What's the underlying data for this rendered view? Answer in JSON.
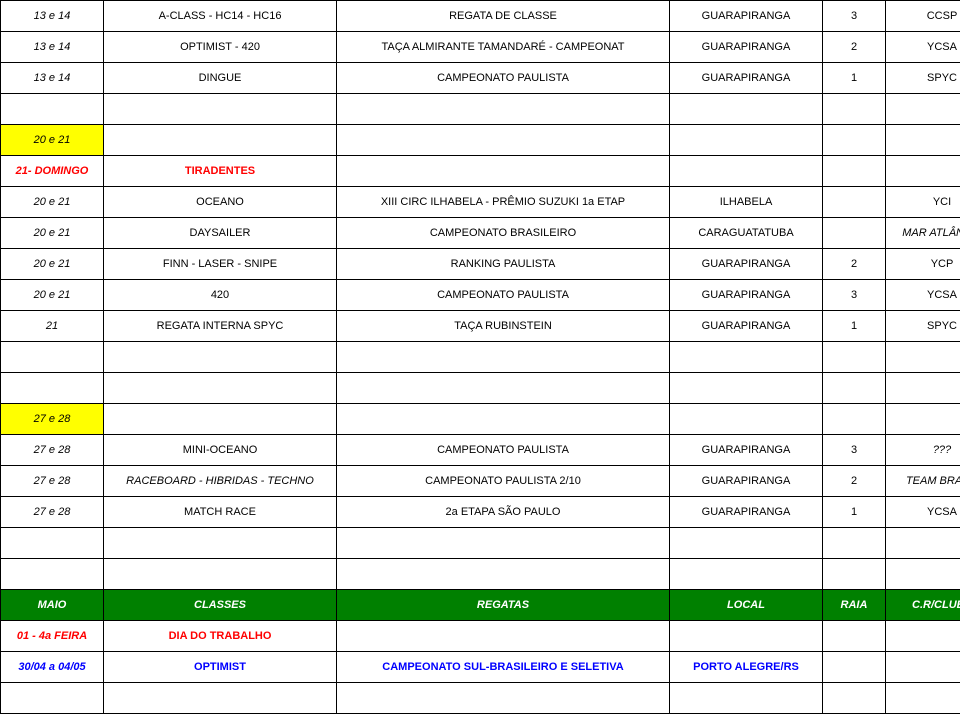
{
  "rows": [
    {
      "cells": [
        {
          "text": "13 e 14",
          "classes": "col-date italic"
        },
        {
          "text": "A-CLASS - HC14 - HC16",
          "classes": "col-class"
        },
        {
          "text": "REGATA DE CLASSE",
          "classes": "col-regata"
        },
        {
          "text": "GUARAPIRANGA",
          "classes": "col-local"
        },
        {
          "text": "3",
          "classes": "col-raia"
        },
        {
          "text": "CCSP",
          "classes": "col-clube"
        }
      ]
    },
    {
      "cells": [
        {
          "text": "13 e 14",
          "classes": "col-date italic"
        },
        {
          "text": "OPTIMIST - 420",
          "classes": "col-class"
        },
        {
          "text": "TAÇA ALMIRANTE TAMANDARÉ - CAMPEONAT",
          "classes": "col-regata"
        },
        {
          "text": "GUARAPIRANGA",
          "classes": "col-local"
        },
        {
          "text": "2",
          "classes": "col-raia"
        },
        {
          "text": "YCSA",
          "classes": "col-clube"
        }
      ]
    },
    {
      "cells": [
        {
          "text": "13 e 14",
          "classes": "col-date italic"
        },
        {
          "text": "DINGUE",
          "classes": "col-class"
        },
        {
          "text": "CAMPEONATO PAULISTA",
          "classes": "col-regata"
        },
        {
          "text": "GUARAPIRANGA",
          "classes": "col-local"
        },
        {
          "text": "1",
          "classes": "col-raia"
        },
        {
          "text": "SPYC",
          "classes": "col-clube"
        }
      ]
    },
    {
      "cells": [
        {
          "text": "",
          "classes": "col-date"
        },
        {
          "text": "",
          "classes": "col-class"
        },
        {
          "text": "",
          "classes": "col-regata"
        },
        {
          "text": "",
          "classes": "col-local"
        },
        {
          "text": "",
          "classes": "col-raia"
        },
        {
          "text": "",
          "classes": "col-clube"
        }
      ]
    },
    {
      "cells": [
        {
          "text": "20 e 21",
          "classes": "col-date italic yellow-bg"
        },
        {
          "text": "",
          "classes": "col-class"
        },
        {
          "text": "",
          "classes": "col-regata"
        },
        {
          "text": "",
          "classes": "col-local"
        },
        {
          "text": "",
          "classes": "col-raia"
        },
        {
          "text": "",
          "classes": "col-clube"
        }
      ]
    },
    {
      "cells": [
        {
          "text": "21- DOMINGO",
          "classes": "col-date italic bold red-text"
        },
        {
          "text": "TIRADENTES",
          "classes": "col-class bold red-text"
        },
        {
          "text": "",
          "classes": "col-regata"
        },
        {
          "text": "",
          "classes": "col-local"
        },
        {
          "text": "",
          "classes": "col-raia"
        },
        {
          "text": "",
          "classes": "col-clube"
        }
      ]
    },
    {
      "cells": [
        {
          "text": "20 e 21",
          "classes": "col-date italic"
        },
        {
          "text": "OCEANO",
          "classes": "col-class"
        },
        {
          "text": "XIII CIRC ILHABELA - PRÊMIO SUZUKI 1a ETAP",
          "classes": "col-regata"
        },
        {
          "text": "ILHABELA",
          "classes": "col-local"
        },
        {
          "text": "",
          "classes": "col-raia"
        },
        {
          "text": "YCI",
          "classes": "col-clube"
        }
      ]
    },
    {
      "cells": [
        {
          "text": "20 e 21",
          "classes": "col-date italic"
        },
        {
          "text": "DAYSAILER",
          "classes": "col-class"
        },
        {
          "text": "CAMPEONATO BRASILEIRO",
          "classes": "col-regata"
        },
        {
          "text": "CARAGUATATUBA",
          "classes": "col-local"
        },
        {
          "text": "",
          "classes": "col-raia"
        },
        {
          "text": "MAR ATLÂNTIC",
          "classes": "col-clube italic"
        }
      ]
    },
    {
      "cells": [
        {
          "text": "20 e 21",
          "classes": "col-date italic"
        },
        {
          "text": "FINN - LASER - SNIPE",
          "classes": "col-class"
        },
        {
          "text": "RANKING PAULISTA",
          "classes": "col-regata"
        },
        {
          "text": "GUARAPIRANGA",
          "classes": "col-local"
        },
        {
          "text": "2",
          "classes": "col-raia"
        },
        {
          "text": "YCP",
          "classes": "col-clube"
        }
      ]
    },
    {
      "cells": [
        {
          "text": "20 e 21",
          "classes": "col-date italic"
        },
        {
          "text": "420",
          "classes": "col-class"
        },
        {
          "text": "CAMPEONATO PAULISTA",
          "classes": "col-regata"
        },
        {
          "text": "GUARAPIRANGA",
          "classes": "col-local"
        },
        {
          "text": "3",
          "classes": "col-raia"
        },
        {
          "text": "YCSA",
          "classes": "col-clube"
        }
      ]
    },
    {
      "cells": [
        {
          "text": "21",
          "classes": "col-date italic"
        },
        {
          "text": "REGATA INTERNA SPYC",
          "classes": "col-class"
        },
        {
          "text": "TAÇA RUBINSTEIN",
          "classes": "col-regata"
        },
        {
          "text": "GUARAPIRANGA",
          "classes": "col-local"
        },
        {
          "text": "1",
          "classes": "col-raia"
        },
        {
          "text": "SPYC",
          "classes": "col-clube"
        }
      ]
    },
    {
      "cells": [
        {
          "text": "",
          "classes": "col-date"
        },
        {
          "text": "",
          "classes": "col-class"
        },
        {
          "text": "",
          "classes": "col-regata"
        },
        {
          "text": "",
          "classes": "col-local"
        },
        {
          "text": "",
          "classes": "col-raia"
        },
        {
          "text": "",
          "classes": "col-clube"
        }
      ]
    },
    {
      "cells": [
        {
          "text": "",
          "classes": "col-date"
        },
        {
          "text": "",
          "classes": "col-class"
        },
        {
          "text": "",
          "classes": "col-regata"
        },
        {
          "text": "",
          "classes": "col-local"
        },
        {
          "text": "",
          "classes": "col-raia"
        },
        {
          "text": "",
          "classes": "col-clube"
        }
      ]
    },
    {
      "cells": [
        {
          "text": "27 e 28",
          "classes": "col-date italic yellow-bg"
        },
        {
          "text": "",
          "classes": "col-class"
        },
        {
          "text": "",
          "classes": "col-regata"
        },
        {
          "text": "",
          "classes": "col-local"
        },
        {
          "text": "",
          "classes": "col-raia"
        },
        {
          "text": "",
          "classes": "col-clube"
        }
      ]
    },
    {
      "cells": [
        {
          "text": "27 e 28",
          "classes": "col-date italic"
        },
        {
          "text": "MINI-OCEANO",
          "classes": "col-class"
        },
        {
          "text": "CAMPEONATO PAULISTA",
          "classes": "col-regata"
        },
        {
          "text": "GUARAPIRANGA",
          "classes": "col-local"
        },
        {
          "text": "3",
          "classes": "col-raia"
        },
        {
          "text": "???",
          "classes": "col-clube italic"
        }
      ]
    },
    {
      "cells": [
        {
          "text": "27 e 28",
          "classes": "col-date italic"
        },
        {
          "text": "RACEBOARD - HIBRIDAS - TECHNO",
          "classes": "col-class italic"
        },
        {
          "text": "CAMPEONATO PAULISTA  2/10",
          "classes": "col-regata"
        },
        {
          "text": "GUARAPIRANGA",
          "classes": "col-local"
        },
        {
          "text": "2",
          "classes": "col-raia"
        },
        {
          "text": "TEAM BRAZIL",
          "classes": "col-clube italic"
        }
      ]
    },
    {
      "cells": [
        {
          "text": "27 e 28",
          "classes": "col-date italic"
        },
        {
          "text": "MATCH RACE",
          "classes": "col-class"
        },
        {
          "text": "2a ETAPA SÃO PAULO",
          "classes": "col-regata"
        },
        {
          "text": "GUARAPIRANGA",
          "classes": "col-local"
        },
        {
          "text": "1",
          "classes": "col-raia"
        },
        {
          "text": "YCSA",
          "classes": "col-clube"
        }
      ]
    },
    {
      "cells": [
        {
          "text": "",
          "classes": "col-date"
        },
        {
          "text": "",
          "classes": "col-class"
        },
        {
          "text": "",
          "classes": "col-regata"
        },
        {
          "text": "",
          "classes": "col-local"
        },
        {
          "text": "",
          "classes": "col-raia"
        },
        {
          "text": "",
          "classes": "col-clube"
        }
      ]
    },
    {
      "cells": [
        {
          "text": "",
          "classes": "col-date"
        },
        {
          "text": "",
          "classes": "col-class"
        },
        {
          "text": "",
          "classes": "col-regata"
        },
        {
          "text": "",
          "classes": "col-local"
        },
        {
          "text": "",
          "classes": "col-raia"
        },
        {
          "text": "",
          "classes": "col-clube"
        }
      ]
    },
    {
      "cells": [
        {
          "text": "MAIO",
          "classes": "col-date italic bold white-text green-bg"
        },
        {
          "text": "CLASSES",
          "classes": "col-class italic bold white-text green-bg"
        },
        {
          "text": "REGATAS",
          "classes": "col-regata italic bold white-text green-bg"
        },
        {
          "text": "LOCAL",
          "classes": "col-local italic bold white-text green-bg"
        },
        {
          "text": "RAIA",
          "classes": "col-raia italic bold white-text green-bg"
        },
        {
          "text": "C.R/CLUBE",
          "classes": "col-clube italic bold white-text green-bg"
        }
      ]
    },
    {
      "cells": [
        {
          "text": "01 - 4a FEIRA",
          "classes": "col-date italic bold red-text"
        },
        {
          "text": "DIA DO TRABALHO",
          "classes": "col-class bold red-text"
        },
        {
          "text": "",
          "classes": "col-regata"
        },
        {
          "text": "",
          "classes": "col-local"
        },
        {
          "text": "",
          "classes": "col-raia"
        },
        {
          "text": "",
          "classes": "col-clube"
        }
      ]
    },
    {
      "cells": [
        {
          "text": "30/04 a 04/05",
          "classes": "col-date italic bold blue-text"
        },
        {
          "text": "OPTIMIST",
          "classes": "col-class bold blue-text"
        },
        {
          "text": "CAMPEONATO SUL-BRASILEIRO E SELETIVA",
          "classes": "col-regata bold blue-text"
        },
        {
          "text": "PORTO ALEGRE/RS",
          "classes": "col-local bold blue-text"
        },
        {
          "text": "",
          "classes": "col-raia"
        },
        {
          "text": "",
          "classes": "col-clube"
        }
      ]
    },
    {
      "cells": [
        {
          "text": "",
          "classes": "col-date"
        },
        {
          "text": "",
          "classes": "col-class"
        },
        {
          "text": "",
          "classes": "col-regata"
        },
        {
          "text": "",
          "classes": "col-local"
        },
        {
          "text": "",
          "classes": "col-raia"
        },
        {
          "text": "",
          "classes": "col-clube"
        }
      ]
    }
  ]
}
